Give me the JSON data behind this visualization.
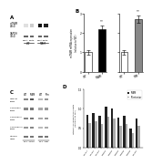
{
  "panel_B_left": {
    "categories": [
      "WT",
      "TfAM"
    ],
    "values": [
      1.0,
      2.2
    ],
    "errors": [
      0.12,
      0.18
    ],
    "colors": [
      "white",
      "black"
    ],
    "ylabel": "mTFAM mRNA expression\n(relative to WT)",
    "ylim": [
      0,
      3
    ],
    "yticks": [
      0,
      1,
      2,
      3
    ],
    "sig": "**"
  },
  "panel_B_right": {
    "categories": [
      "WT",
      "TfM"
    ],
    "values": [
      1.0,
      2.7
    ],
    "errors": [
      0.12,
      0.2
    ],
    "colors": [
      "white",
      "#888888"
    ],
    "ylabel": "",
    "ylim": [
      0,
      3
    ],
    "yticks": [
      0,
      1,
      2,
      3
    ],
    "sig": "**"
  },
  "panel_D": {
    "categories": [
      "mtCo1",
      "mtCo2",
      "mtCo3",
      "mtNd1",
      "mtNd2",
      "mtNd4",
      "mtNd5",
      "mtNd6",
      "mtCyb"
    ],
    "values_tfam": [
      0.85,
      0.88,
      0.82,
      1.05,
      1.0,
      0.78,
      0.82,
      0.5,
      0.75
    ],
    "values_tfm": [
      0.62,
      0.68,
      0.6,
      0.8,
      0.75,
      0.55,
      0.6,
      0.38,
      0.55
    ],
    "color_tfam": "#222222",
    "color_tfm": "#aaaaaa",
    "ylabel": "mtDNA-encoded transcripts\n(relative to WT)",
    "ylim": [
      0,
      1.5
    ],
    "yticks": [
      0.0,
      0.5,
      1.0,
      1.5
    ],
    "legend_tfam": "TfAM",
    "legend_tfm": "Tfenterior"
  },
  "panel_A": {
    "row_labels": [
      "mTFAM\n25kD",
      "GAPDH\n37kD"
    ],
    "col_labels": [
      "heart",
      "aorta",
      "heart",
      "aorta"
    ],
    "group_labels": [
      "WT",
      "TfAM"
    ],
    "mTFAM_intensities": [
      "#e0e0e0",
      "#cccccc",
      "#111111",
      "#222222"
    ],
    "GAPDH_intensities": [
      "#666666",
      "#666666",
      "#666666",
      "#666666"
    ]
  },
  "panel_C": {
    "row_labels": [
      "mTFAM\n25kD",
      "Complex I\n25kD",
      "Complex II\n70kD",
      "Complex IV\n25kD",
      "GAPDH\n37kD"
    ],
    "col_labels": [
      "WT",
      "TfAM",
      "WT",
      "Tfm"
    ],
    "intensities": [
      [
        "#888888",
        "#555555",
        "#bbbbbb",
        "#999999"
      ],
      [
        "#888888",
        "#777777",
        "#aaaaaa",
        "#999999"
      ],
      [
        "#888888",
        "#777777",
        "#aaaaaa",
        "#999999"
      ],
      [
        "#999999",
        "#888888",
        "#bbbbbb",
        "#aaaaaa"
      ],
      [
        "#777777",
        "#777777",
        "#777777",
        "#777777"
      ]
    ]
  },
  "bg_color": "#ffffff"
}
